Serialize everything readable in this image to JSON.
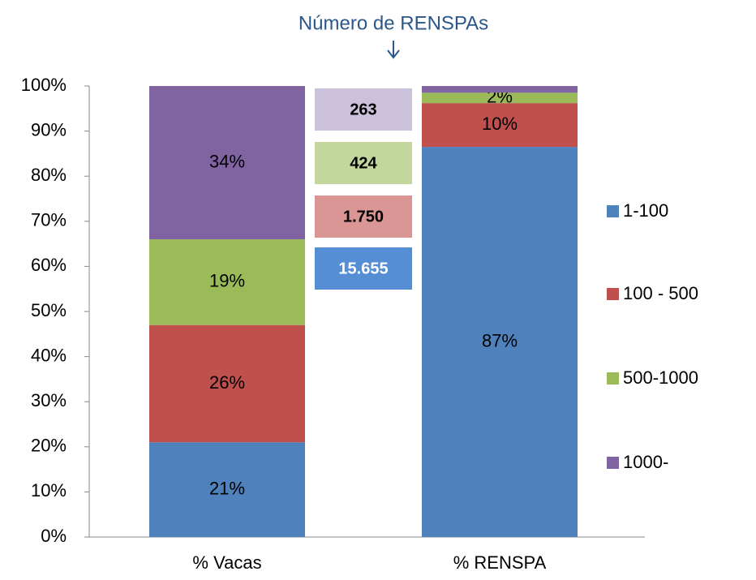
{
  "chart_data": {
    "type": "stacked_bar",
    "title": "Número de RENSPAs",
    "categories": [
      "% Vacas",
      "% RENSPA"
    ],
    "series": [
      {
        "name": "1-100",
        "color": "#4f81bd",
        "values": [
          21,
          86.5
        ],
        "value_labels": [
          "21%",
          "87%"
        ]
      },
      {
        "name": "100 - 500",
        "color": "#c0504d",
        "values": [
          26,
          9.7
        ],
        "value_labels": [
          "26%",
          "10%"
        ]
      },
      {
        "name": "500-1000",
        "color": "#9bbb59",
        "values": [
          19,
          2.3
        ],
        "value_labels": [
          "19%",
          "2%"
        ]
      },
      {
        "name": "1000-",
        "color": "#8064a2",
        "values": [
          34,
          1.5
        ],
        "value_labels": [
          "34%",
          null
        ]
      }
    ],
    "ylim": [
      0,
      100
    ],
    "yticks": [
      {
        "value": 0,
        "label": "0%"
      },
      {
        "value": 10,
        "label": "10%"
      },
      {
        "value": 20,
        "label": "20%"
      },
      {
        "value": 30,
        "label": "30%"
      },
      {
        "value": 40,
        "label": "40%"
      },
      {
        "value": 50,
        "label": "50%"
      },
      {
        "value": 60,
        "label": "60%"
      },
      {
        "value": 70,
        "label": "70%"
      },
      {
        "value": 80,
        "label": "80%"
      },
      {
        "value": 90,
        "label": "90%"
      },
      {
        "value": 100,
        "label": "100%"
      }
    ],
    "legend": "right",
    "annotations": [
      {
        "text": "263",
        "color": "#ccc1da",
        "text_color": "#000000"
      },
      {
        "text": "424",
        "color": "#c3d69b",
        "text_color": "#000000"
      },
      {
        "text": "1.750",
        "color": "#d99694",
        "text_color": "#000000"
      },
      {
        "text": "15.655",
        "color": "#558ed5",
        "text_color": "#ffffff"
      }
    ]
  }
}
